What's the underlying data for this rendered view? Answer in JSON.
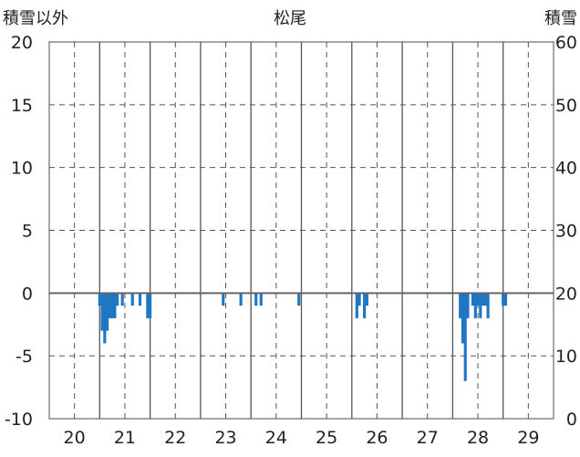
{
  "chart_data": {
    "type": "bar",
    "title": "松尾",
    "ylabel_left": "積雪以外",
    "ylabel_right": "積雪",
    "ylim_left": [
      -10,
      20
    ],
    "ylim_right": [
      0,
      60
    ],
    "yticks_left": [
      "20",
      "15",
      "10",
      "5",
      "0",
      "-5",
      "-10"
    ],
    "yticks_right": [
      "60",
      "50",
      "40",
      "30",
      "20",
      "10",
      "0"
    ],
    "x_range": [
      19.5,
      29.5
    ],
    "xticks": [
      "20",
      "21",
      "22",
      "23",
      "24",
      "25",
      "26",
      "27",
      "28",
      "29"
    ],
    "grid": true,
    "series": [
      {
        "color": "#1f77c4",
        "x": [
          20.5,
          20.55,
          20.6,
          20.65,
          20.7,
          20.75,
          20.8,
          20.85,
          20.95,
          21.15,
          21.3,
          21.45,
          21.5,
          22.95,
          23.3,
          23.6,
          23.7,
          24.45,
          25.6,
          25.65,
          25.75,
          25.8,
          27.65,
          27.7,
          27.75,
          27.8,
          27.9,
          27.95,
          28.0,
          28.05,
          28.1,
          28.15,
          28.2,
          28.5,
          28.55
        ],
        "values": [
          -1,
          -3,
          -4,
          -3,
          -2,
          -2,
          -2,
          -1,
          -1,
          -1,
          -1,
          -2,
          -2,
          -1,
          -1,
          -1,
          -1,
          -1,
          -2,
          -1,
          -2,
          -1,
          -2,
          -4,
          -7,
          -2,
          -1,
          -2,
          -1,
          -2,
          -1,
          -1,
          -2,
          -1,
          -1
        ]
      }
    ]
  }
}
